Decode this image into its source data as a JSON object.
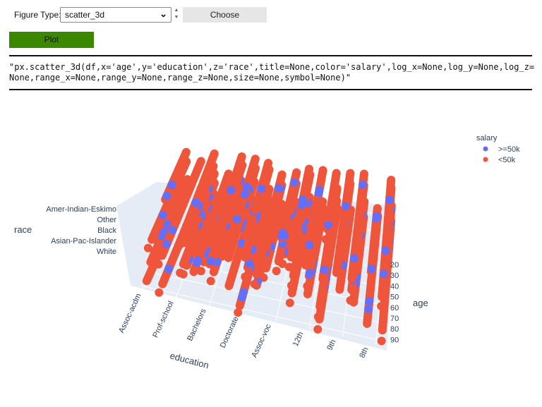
{
  "controls": {
    "figure_type_label": "Figure Type:",
    "figure_type_value": "scatter_3d",
    "choose_label": "Choose",
    "plot_label": "Plot"
  },
  "code": "\"px.scatter_3d(df,x='age',y='education',z='race',title=None,color='salary',log_x=None,log_y=None,log_z=None,range_x=None,range_y=None,range_z=None,size=None,symbol=None)\"",
  "chart_data": {
    "type": "scatter3d",
    "x_axis": {
      "label": "age",
      "ticks": [
        "20",
        "30",
        "40",
        "50",
        "60",
        "70",
        "80",
        "90"
      ]
    },
    "y_axis": {
      "label": "education",
      "ticks": [
        "Assoc-acdm",
        "Prof-school",
        "Bachelors",
        "Doctorate",
        "Assoc-voc",
        "12th",
        "9th",
        "8th"
      ]
    },
    "z_axis": {
      "label": "race",
      "ticks": [
        "White",
        "Asian-Pac-Islander",
        "Black",
        "Other",
        "Amer-Indian-Eskimo"
      ]
    },
    "legend": {
      "title": "salary",
      "position": "top-right",
      "entries": [
        {
          "name": ">=50k",
          "color": "#636efa"
        },
        {
          "name": "<50k",
          "color": "#ef553b"
        }
      ]
    }
  }
}
